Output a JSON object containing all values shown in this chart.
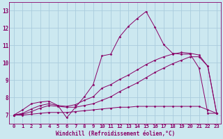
{
  "xlabel": "Windchill (Refroidissement éolien,°C)",
  "xlim": [
    -0.5,
    23.5
  ],
  "ylim": [
    6.5,
    13.5
  ],
  "xticks": [
    0,
    1,
    2,
    3,
    4,
    5,
    6,
    7,
    8,
    9,
    10,
    11,
    12,
    13,
    14,
    15,
    16,
    17,
    18,
    19,
    20,
    21,
    22,
    23
  ],
  "yticks": [
    7,
    8,
    9,
    10,
    11,
    12,
    13
  ],
  "bg_color": "#cce8f0",
  "grid_color": "#aaccdd",
  "line_color": "#880066",
  "line1_y": [
    7.0,
    7.3,
    7.65,
    7.75,
    7.8,
    7.55,
    6.85,
    7.45,
    8.05,
    8.75,
    10.4,
    10.5,
    11.5,
    12.1,
    12.55,
    12.95,
    12.05,
    11.05,
    10.55,
    10.5,
    10.5,
    9.7,
    7.1,
    7.1
  ],
  "line2_y": [
    7.0,
    7.1,
    7.35,
    7.55,
    7.65,
    7.55,
    7.5,
    7.6,
    7.85,
    8.05,
    8.55,
    8.75,
    9.05,
    9.3,
    9.6,
    9.9,
    10.15,
    10.35,
    10.5,
    10.6,
    10.55,
    10.45,
    9.8,
    7.1
  ],
  "line3_y": [
    7.0,
    7.05,
    7.2,
    7.4,
    7.55,
    7.5,
    7.45,
    7.45,
    7.55,
    7.65,
    7.85,
    8.05,
    8.35,
    8.6,
    8.85,
    9.15,
    9.45,
    9.7,
    9.95,
    10.15,
    10.35,
    10.35,
    9.8,
    7.1
  ],
  "line4_y": [
    7.0,
    7.0,
    7.05,
    7.1,
    7.15,
    7.15,
    7.15,
    7.2,
    7.25,
    7.3,
    7.35,
    7.4,
    7.45,
    7.45,
    7.5,
    7.5,
    7.5,
    7.5,
    7.5,
    7.5,
    7.5,
    7.5,
    7.3,
    7.1
  ],
  "font_size_ticks": 5.2,
  "font_size_xlabel": 5.5,
  "marker": "D",
  "marker_size": 1.5,
  "linewidth": 0.7
}
